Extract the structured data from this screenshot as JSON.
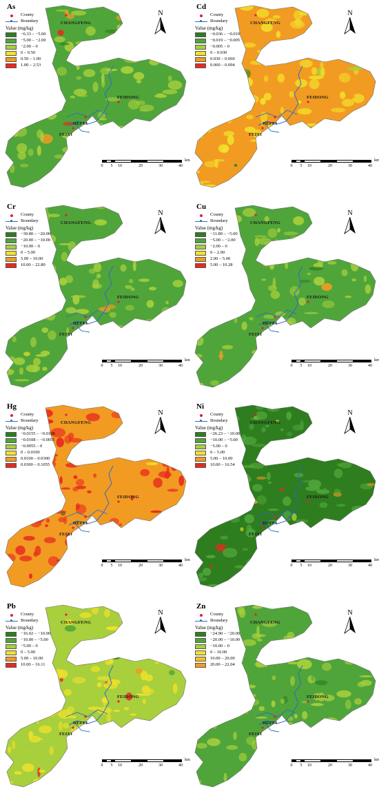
{
  "legend_common": {
    "county": "County",
    "boundary": "Boundary",
    "value_title": "Value (mg/kg)"
  },
  "scale": {
    "unit": "km",
    "ticks": [
      "0",
      "5",
      "10",
      "20",
      "30",
      "40"
    ]
  },
  "labels": {
    "changfeng": "CHANGFENG",
    "feidong": "FEIDONG",
    "hefei": "HEFEI",
    "feixi": "FEIXI",
    "north": "N"
  },
  "colors": {
    "dark_green": "#2e7d1e",
    "green": "#4fa53a",
    "light_green": "#a8cf3c",
    "yellow": "#f2e22a",
    "orange": "#f29b22",
    "red": "#e8291f"
  },
  "panels": [
    {
      "title": "As",
      "classes": [
        "−6.33 – −5.00",
        "−5.00 – −2.00",
        "−2.00 – 0",
        "0 – 0.50",
        "0.50 – 1.00",
        "1.00 – 2.53"
      ],
      "class_colors": [
        "#2e7d1e",
        "#4fa53a",
        "#a8cf3c",
        "#f2e22a",
        "#f29b22",
        "#e8291f"
      ],
      "dominant": "#4fa53a",
      "secondary": "#a8cf3c"
    },
    {
      "title": "Cd",
      "classes": [
        "−0.036 – −0.019",
        "−0.019 – −0.005",
        "−0.005 – 0",
        "0 – 0.030",
        "0.030 – 0.060",
        "0.060 – 0.094"
      ],
      "class_colors": [
        "#2e7d1e",
        "#4fa53a",
        "#a8cf3c",
        "#f2e22a",
        "#f29b22",
        "#e8291f"
      ],
      "dominant": "#f29b22",
      "secondary": "#f2e22a"
    },
    {
      "title": "Cr",
      "classes": [
        "−39.80 – −20.00",
        "−20.00 – −10.00",
        "−10.00 – 0",
        "0 – 5.00",
        "5.00 – 10.00",
        "10.00 – 22.80"
      ],
      "class_colors": [
        "#2e7d1e",
        "#4fa53a",
        "#a8cf3c",
        "#f2e22a",
        "#f29b22",
        "#e8291f"
      ],
      "dominant": "#4fa53a",
      "secondary": "#a8cf3c"
    },
    {
      "title": "Cu",
      "classes": [
        "−11.89 – −5.00",
        "−5.00 – −2.00",
        "−2.00 – 0",
        "0 – 2.00",
        "2.00 – 5.00",
        "5.00 – 10.28"
      ],
      "class_colors": [
        "#2e7d1e",
        "#4fa53a",
        "#a8cf3c",
        "#f2e22a",
        "#f29b22",
        "#e8291f"
      ],
      "dominant": "#4fa53a",
      "secondary": "#a8cf3c"
    },
    {
      "title": "Hg",
      "classes": [
        "−0.0155 – −0.0108",
        "−0.0108 – −0.0055",
        "−0.0055 – 0",
        "0 – 0.0100",
        "0.0100 – 0.0300",
        "0.0300 – 0.1055"
      ],
      "class_colors": [
        "#2e7d1e",
        "#4fa53a",
        "#a8cf3c",
        "#f2e22a",
        "#f29b22",
        "#e8291f"
      ],
      "dominant": "#f29b22",
      "secondary": "#e8291f"
    },
    {
      "title": "Ni",
      "classes": [
        "−26.23 – −10.00",
        "−10.00 – −5.00",
        "−5.00 – 0",
        "0 – 5.00",
        "5.00 – 10.00",
        "10.00 – 16.54"
      ],
      "class_colors": [
        "#2e7d1e",
        "#4fa53a",
        "#a8cf3c",
        "#f2e22a",
        "#f29b22",
        "#e8291f"
      ],
      "dominant": "#2e7d1e",
      "secondary": "#4fa53a"
    },
    {
      "title": "Pb",
      "classes": [
        "−16.02 – −10.00",
        "−10.00 – −5.00",
        "−5.00 – 0",
        "0 – 5.00",
        "5.00 – 10.00",
        "10.00 – 16.11"
      ],
      "class_colors": [
        "#2e7d1e",
        "#4fa53a",
        "#a8cf3c",
        "#f2e22a",
        "#f29b22",
        "#e8291f"
      ],
      "dominant": "#a8cf3c",
      "secondary": "#f2e22a"
    },
    {
      "title": "Zn",
      "classes": [
        "−24.90 – −20.00",
        "−20.00 – −10.00",
        "−10.00 – 0",
        "0 – 10.00",
        "10.00 – 20.00",
        "20.00 – 22.04"
      ],
      "class_colors": [
        "#2e7d1e",
        "#4fa53a",
        "#a8cf3c",
        "#f2e22a",
        "#f2c023",
        "#f29b22"
      ],
      "dominant": "#4fa53a",
      "secondary": "#a8cf3c"
    }
  ]
}
